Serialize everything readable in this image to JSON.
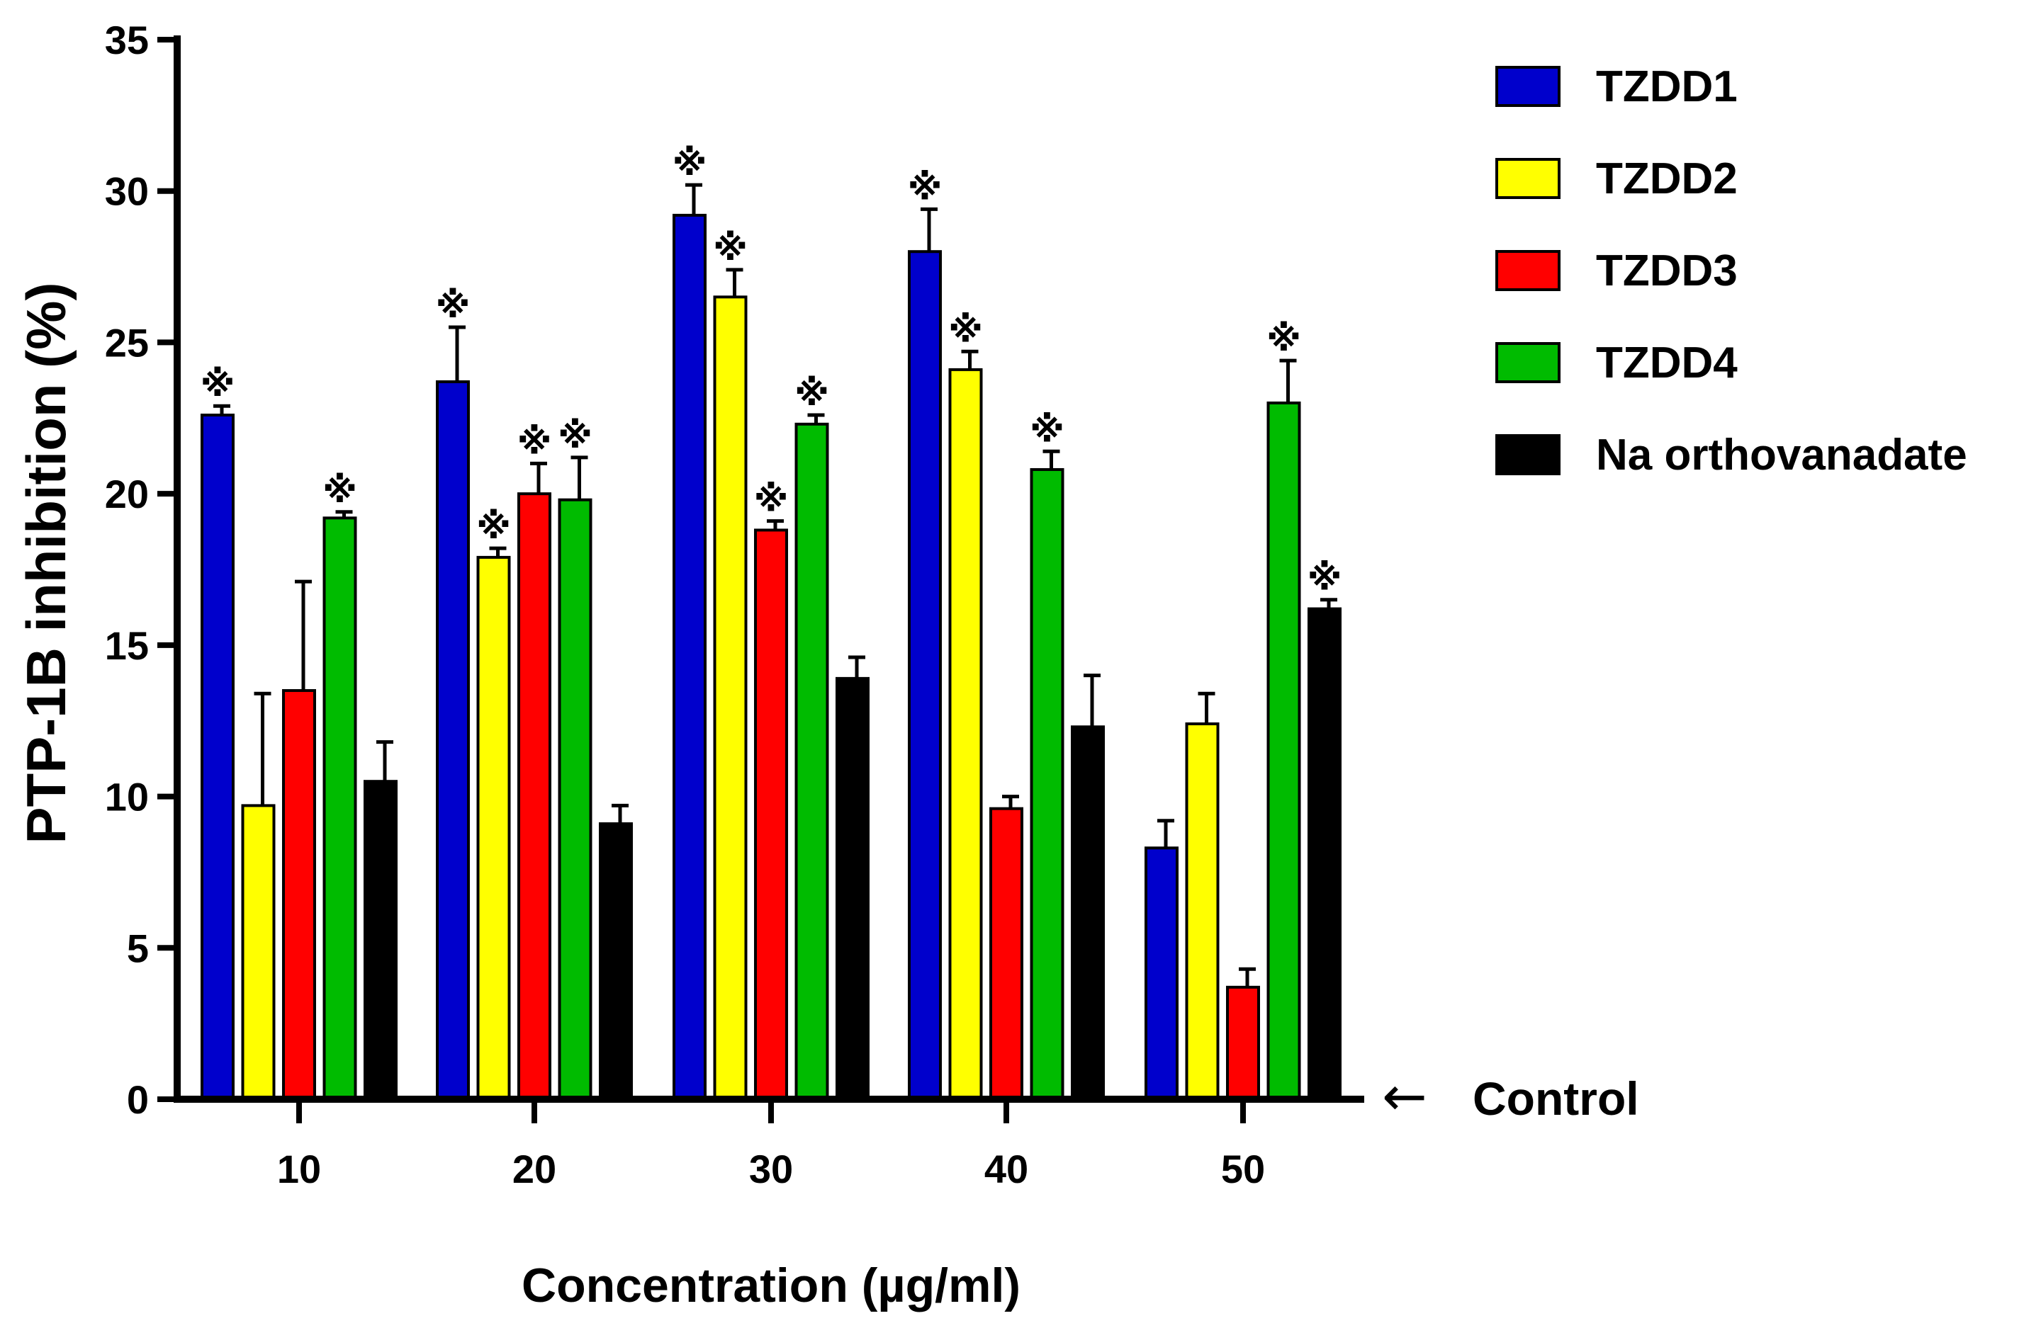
{
  "chart_data": {
    "type": "bar",
    "title": "",
    "xlabel": "Concentration (µg/ml)",
    "ylabel": "PTP-1B inhibition (%)",
    "ylim": [
      0,
      35
    ],
    "yticks": [
      "0",
      "5",
      "10",
      "15",
      "20",
      "25",
      "30",
      "35"
    ],
    "categories": [
      "10",
      "20",
      "30",
      "40",
      "50"
    ],
    "grid": false,
    "legend_position": "top-right",
    "series": [
      {
        "name": "TZDD1",
        "color": "#0000cc",
        "values": [
          22.6,
          23.7,
          29.2,
          28.0,
          8.3
        ],
        "errors": [
          0.3,
          1.8,
          1.0,
          1.4,
          0.9
        ],
        "significant": [
          true,
          true,
          true,
          true,
          false
        ]
      },
      {
        "name": "TZDD2",
        "color": "#ffff00",
        "values": [
          9.7,
          17.9,
          26.5,
          24.1,
          12.4
        ],
        "errors": [
          3.7,
          0.3,
          0.9,
          0.6,
          1.0
        ],
        "significant": [
          false,
          true,
          true,
          true,
          false
        ]
      },
      {
        "name": "TZDD3",
        "color": "#ff0000",
        "values": [
          13.5,
          20.0,
          18.8,
          9.6,
          3.7
        ],
        "errors": [
          3.6,
          1.0,
          0.3,
          0.4,
          0.6
        ],
        "significant": [
          false,
          true,
          true,
          false,
          false
        ]
      },
      {
        "name": "TZDD4",
        "color": "#00bb00",
        "values": [
          19.2,
          19.8,
          22.3,
          20.8,
          23.0
        ],
        "errors": [
          0.2,
          1.4,
          0.3,
          0.6,
          1.4
        ],
        "significant": [
          true,
          true,
          true,
          true,
          true
        ]
      },
      {
        "name": "Na orthovanadate",
        "color": "#000000",
        "values": [
          10.5,
          9.1,
          13.9,
          12.3,
          16.2
        ],
        "errors": [
          1.3,
          0.6,
          0.7,
          1.7,
          0.3
        ],
        "significant": [
          false,
          false,
          false,
          false,
          true
        ]
      }
    ],
    "significance_marker": "※",
    "annotations": [
      {
        "text": "Control",
        "arrow": "←",
        "at_value": 0
      }
    ]
  }
}
